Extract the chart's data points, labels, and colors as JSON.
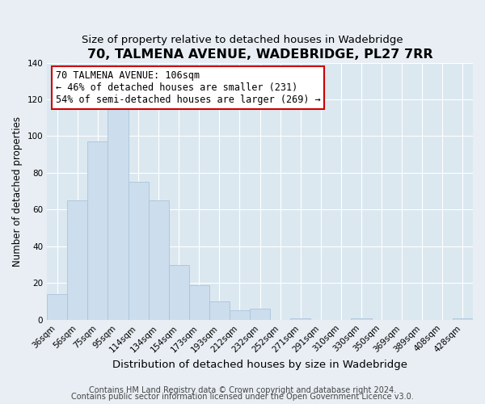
{
  "title": "70, TALMENA AVENUE, WADEBRIDGE, PL27 7RR",
  "subtitle": "Size of property relative to detached houses in Wadebridge",
  "xlabel": "Distribution of detached houses by size in Wadebridge",
  "ylabel": "Number of detached properties",
  "bar_labels": [
    "36sqm",
    "56sqm",
    "75sqm",
    "95sqm",
    "114sqm",
    "134sqm",
    "154sqm",
    "173sqm",
    "193sqm",
    "212sqm",
    "232sqm",
    "252sqm",
    "271sqm",
    "291sqm",
    "310sqm",
    "330sqm",
    "350sqm",
    "369sqm",
    "389sqm",
    "408sqm",
    "428sqm"
  ],
  "bar_values": [
    14,
    65,
    97,
    115,
    75,
    65,
    30,
    19,
    10,
    5,
    6,
    0,
    1,
    0,
    0,
    1,
    0,
    0,
    0,
    0,
    1
  ],
  "bar_color": "#ccdded",
  "bar_edge_color": "#aac4da",
  "ylim": [
    0,
    140
  ],
  "yticks": [
    0,
    20,
    40,
    60,
    80,
    100,
    120,
    140
  ],
  "annotation_title": "70 TALMENA AVENUE: 106sqm",
  "annotation_line1": "← 46% of detached houses are smaller (231)",
  "annotation_line2": "54% of semi-detached houses are larger (269) →",
  "annotation_box_color": "#ffffff",
  "annotation_box_edge": "#cc0000",
  "footer1": "Contains HM Land Registry data © Crown copyright and database right 2024.",
  "footer2": "Contains public sector information licensed under the Open Government Licence v3.0.",
  "background_color": "#e8eef4",
  "plot_bg_color": "#dce8f0",
  "title_fontsize": 11.5,
  "subtitle_fontsize": 9.5,
  "xlabel_fontsize": 9.5,
  "ylabel_fontsize": 8.5,
  "tick_fontsize": 7.5,
  "footer_fontsize": 7,
  "ann_fontsize": 8.5
}
